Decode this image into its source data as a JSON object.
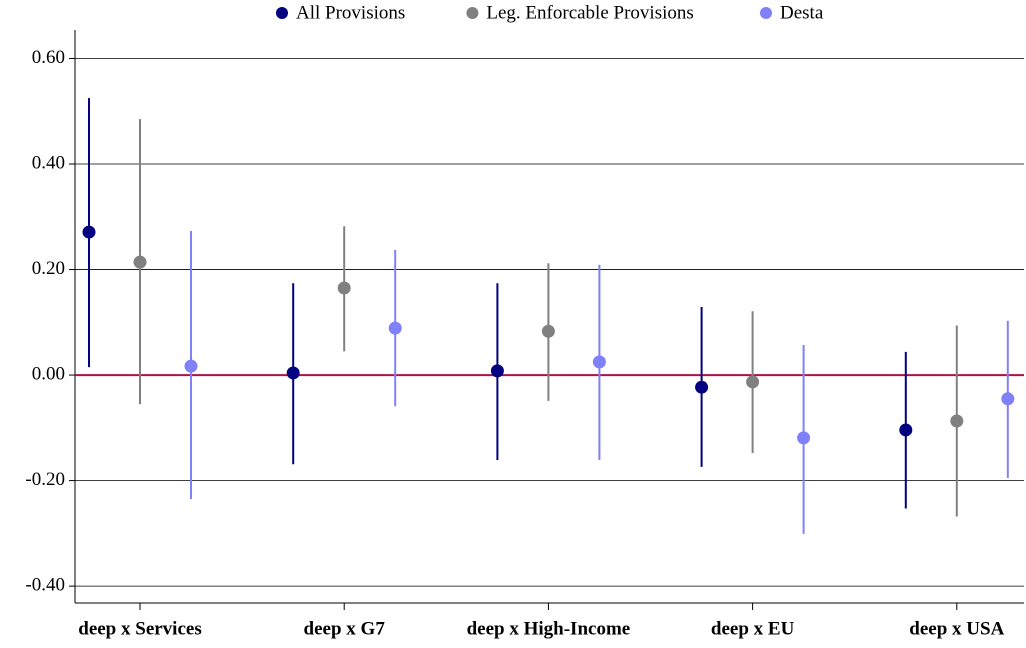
{
  "chart_data": {
    "type": "errorbar",
    "categories": [
      "deep x Services",
      "deep x G7",
      "deep x High-Income",
      "deep x EU",
      "deep x USA"
    ],
    "series": [
      {
        "name": "All Provisions",
        "color": "#000080",
        "values": [
          0.271,
          0.004,
          0.008,
          -0.023,
          -0.104
        ],
        "lower": [
          0.015,
          -0.169,
          -0.161,
          -0.174,
          -0.253
        ],
        "upper": [
          0.525,
          0.174,
          0.174,
          0.129,
          0.044
        ]
      },
      {
        "name": "Leg. Enforcable Provisions",
        "color": "#808080",
        "values": [
          0.214,
          0.165,
          0.083,
          -0.013,
          -0.087
        ],
        "lower": [
          -0.055,
          0.045,
          -0.049,
          -0.148,
          -0.268
        ],
        "upper": [
          0.485,
          0.282,
          0.212,
          0.121,
          0.094
        ]
      },
      {
        "name": "Desta",
        "color": "#8080f8",
        "values": [
          0.017,
          0.089,
          0.025,
          -0.119,
          -0.045
        ],
        "lower": [
          -0.235,
          -0.059,
          -0.161,
          -0.301,
          -0.195
        ],
        "upper": [
          0.273,
          0.237,
          0.209,
          0.057,
          0.103
        ]
      }
    ],
    "ylim": [
      -0.432,
      0.654
    ],
    "yticks": [
      {
        "value": -0.4,
        "label": "-0.40"
      },
      {
        "value": -0.2,
        "label": "-0.20"
      },
      {
        "value": 0,
        "label": "0.00"
      },
      {
        "value": 0.2,
        "label": "0.20"
      },
      {
        "value": 0.4,
        "label": "0.40"
      },
      {
        "value": 0.6,
        "label": "0.60"
      }
    ],
    "grid": true,
    "reference_line": {
      "value": 0,
      "color": "#b01048"
    },
    "legend": "top"
  }
}
